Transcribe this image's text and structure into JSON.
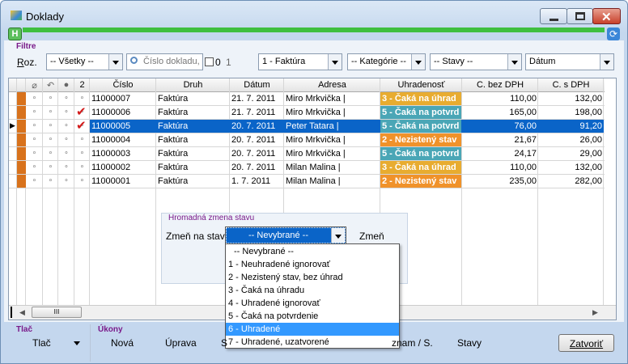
{
  "window": {
    "title": "Doklady"
  },
  "toolbar": {
    "h_button": "H"
  },
  "filter": {
    "label": "Filtre",
    "roz": "Roz.",
    "all": "-- Všetky --",
    "search": "Číslo dokladu,",
    "radio_0": "0",
    "radio_1": "1",
    "type": "1 - Faktúra",
    "category": "-- Kategórie --",
    "state": "-- Stavy --",
    "date": "Dátum"
  },
  "table": {
    "headers": [
      "2",
      "Číslo",
      "Druh",
      "Dátum",
      "Adresa",
      "Uhradenosť",
      "C. bez DPH",
      "C. s DPH"
    ],
    "selected_row": 2,
    "rows": [
      {
        "number": "11000007",
        "type": "Faktúra",
        "date": "21. 7. 2011",
        "address": "Miro Mrkvička |",
        "status": "3 - Čaká na úhrad",
        "status_color": "#e8ac30",
        "net": "110,00",
        "gross": "132,00",
        "checked": false
      },
      {
        "number": "11000006",
        "type": "Faktúra",
        "date": "21. 7. 2011",
        "address": "Miro Mrkvička |",
        "status": "5 - Čaká na potvrd",
        "status_color": "#4aa6b6",
        "net": "165,00",
        "gross": "198,00",
        "checked": true
      },
      {
        "number": "11000005",
        "type": "Faktúra",
        "date": "20. 7. 2011",
        "address": "Peter Tatara |",
        "status": "5 - Čaká na potvrd",
        "status_color": "#4aa6b6",
        "net": "76,00",
        "gross": "91,20",
        "checked": true
      },
      {
        "number": "11000004",
        "type": "Faktúra",
        "date": "20. 7. 2011",
        "address": "Miro Mrkvička |",
        "status": "2 - Nezistený stav",
        "status_color": "#f0922a",
        "net": "21,67",
        "gross": "26,00",
        "checked": false
      },
      {
        "number": "11000003",
        "type": "Faktúra",
        "date": "20. 7. 2011",
        "address": "Miro Mrkvička |",
        "status": "5 - Čaká na potvrd",
        "status_color": "#4aa6b6",
        "net": "24,17",
        "gross": "29,00",
        "checked": false
      },
      {
        "number": "11000002",
        "type": "Faktúra",
        "date": "20. 7. 2011",
        "address": "Milan Malina |",
        "status": "3 - Čaká na úhrad",
        "status_color": "#e8ac30",
        "net": "110,00",
        "gross": "132,00",
        "checked": false
      },
      {
        "number": "11000001",
        "type": "Faktúra",
        "date": "1. 7. 2011",
        "address": "Milan Malina |",
        "status": "2 - Nezistený stav",
        "status_color": "#f0922a",
        "net": "235,00",
        "gross": "282,00",
        "checked": false
      }
    ]
  },
  "bulk": {
    "label": "Hromadná zmena stavu",
    "field": "Zmeň na stav",
    "selected": "-- Nevybrané --",
    "button": "Zmeň"
  },
  "dropdown": {
    "highlighted": 6,
    "options": [
      "-- Nevybrané --",
      "1 - Neuhradené ignorovať",
      "2 - Nezistený stav, bez úhrad",
      "3 - Čaká na úhradu",
      "4 - Uhradené ignorovať",
      "5 - Čaká na potvrdenie",
      "6 - Uhradené",
      "7 - Uhradené, uzatvorené"
    ]
  },
  "footer": {
    "print_label": "Tlač",
    "print_button": "Tlač",
    "actions_label": "Úkony",
    "actions": [
      "Nová",
      "Úprava",
      "S",
      "znam / S.",
      "Stavy"
    ],
    "close": "Zatvoriť"
  }
}
